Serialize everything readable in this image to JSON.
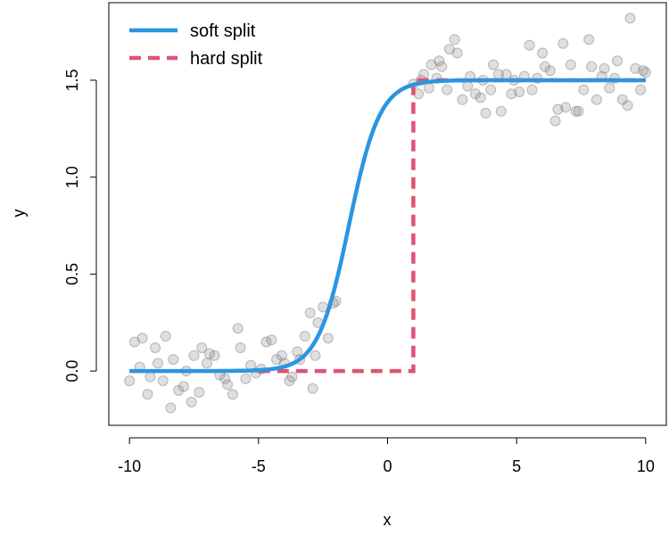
{
  "chart_data": {
    "type": "scatter",
    "title": "",
    "xlabel": "x",
    "ylabel": "y",
    "xlim": [
      -10.8,
      10.8
    ],
    "ylim": [
      -0.28,
      1.9
    ],
    "x_ticks": [
      -10,
      -5,
      0,
      5,
      10
    ],
    "x_tick_labels": [
      "-10",
      "-5",
      "0",
      "5",
      "10"
    ],
    "y_ticks": [
      0.0,
      0.5,
      1.0,
      1.5
    ],
    "y_tick_labels": [
      "0.0",
      "0.5",
      "1.0",
      "1.5"
    ],
    "legend_position": "top-left",
    "colors": {
      "soft": "#2b95e0",
      "hard": "#de5473",
      "points": "#808080"
    },
    "series": [
      {
        "name": "soft split",
        "kind": "logistic curve",
        "low": 0,
        "high": 1.5,
        "center": -1.5,
        "scale": 0.6,
        "x_range": [
          -10,
          10
        ]
      },
      {
        "name": "hard split",
        "kind": "step",
        "low": 0,
        "high": 1.5,
        "x_range": [
          -5,
          10
        ],
        "split_at": 1
      }
    ],
    "points": [
      [
        -10,
        -0.05
      ],
      [
        -9.8,
        0.15
      ],
      [
        -9.6,
        0.02
      ],
      [
        -9.5,
        0.17
      ],
      [
        -9.3,
        -0.12
      ],
      [
        -9.2,
        -0.03
      ],
      [
        -9.0,
        0.12
      ],
      [
        -8.9,
        0.04
      ],
      [
        -8.7,
        -0.05
      ],
      [
        -8.6,
        0.18
      ],
      [
        -8.4,
        -0.19
      ],
      [
        -8.3,
        0.06
      ],
      [
        -8.1,
        -0.1
      ],
      [
        -7.9,
        -0.08
      ],
      [
        -7.8,
        0.0
      ],
      [
        -7.6,
        -0.16
      ],
      [
        -7.5,
        0.08
      ],
      [
        -7.3,
        -0.11
      ],
      [
        -7.2,
        0.12
      ],
      [
        -7.0,
        0.04
      ],
      [
        -6.9,
        0.09
      ],
      [
        -6.7,
        0.08
      ],
      [
        -6.5,
        -0.02
      ],
      [
        -6.3,
        -0.04
      ],
      [
        -6.2,
        -0.07
      ],
      [
        -6.0,
        -0.12
      ],
      [
        -5.8,
        0.22
      ],
      [
        -5.7,
        0.12
      ],
      [
        -5.5,
        -0.04
      ],
      [
        -5.3,
        0.03
      ],
      [
        -5.1,
        -0.01
      ],
      [
        -4.9,
        0.01
      ],
      [
        -4.7,
        0.15
      ],
      [
        -4.5,
        0.16
      ],
      [
        -4.3,
        0.06
      ],
      [
        -4.1,
        0.08
      ],
      [
        -4.0,
        0.04
      ],
      [
        -3.8,
        -0.05
      ],
      [
        -3.7,
        -0.03
      ],
      [
        -3.5,
        0.1
      ],
      [
        -3.4,
        0.06
      ],
      [
        -3.2,
        0.18
      ],
      [
        -3.0,
        0.3
      ],
      [
        -2.9,
        -0.09
      ],
      [
        -2.8,
        0.08
      ],
      [
        -2.7,
        0.25
      ],
      [
        -2.5,
        0.33
      ],
      [
        -2.3,
        0.17
      ],
      [
        -2.1,
        0.35
      ],
      [
        -2.0,
        0.36
      ],
      [
        1.0,
        1.48
      ],
      [
        1.2,
        1.43
      ],
      [
        1.3,
        1.5
      ],
      [
        1.4,
        1.53
      ],
      [
        1.6,
        1.46
      ],
      [
        1.7,
        1.58
      ],
      [
        1.9,
        1.51
      ],
      [
        2.0,
        1.6
      ],
      [
        2.1,
        1.57
      ],
      [
        2.3,
        1.45
      ],
      [
        2.4,
        1.66
      ],
      [
        2.6,
        1.71
      ],
      [
        2.7,
        1.64
      ],
      [
        2.9,
        1.4
      ],
      [
        3.1,
        1.47
      ],
      [
        3.2,
        1.52
      ],
      [
        3.4,
        1.43
      ],
      [
        3.6,
        1.41
      ],
      [
        3.7,
        1.5
      ],
      [
        3.8,
        1.33
      ],
      [
        4.0,
        1.45
      ],
      [
        4.1,
        1.58
      ],
      [
        4.3,
        1.53
      ],
      [
        4.4,
        1.34
      ],
      [
        4.6,
        1.53
      ],
      [
        4.8,
        1.43
      ],
      [
        4.9,
        1.5
      ],
      [
        5.1,
        1.44
      ],
      [
        5.3,
        1.52
      ],
      [
        5.5,
        1.68
      ],
      [
        5.6,
        1.45
      ],
      [
        5.8,
        1.51
      ],
      [
        6.0,
        1.64
      ],
      [
        6.1,
        1.57
      ],
      [
        6.3,
        1.55
      ],
      [
        6.5,
        1.29
      ],
      [
        6.6,
        1.35
      ],
      [
        6.8,
        1.69
      ],
      [
        6.9,
        1.36
      ],
      [
        7.1,
        1.58
      ],
      [
        7.3,
        1.34
      ],
      [
        7.4,
        1.34
      ],
      [
        7.6,
        1.45
      ],
      [
        7.8,
        1.71
      ],
      [
        7.9,
        1.57
      ],
      [
        8.1,
        1.4
      ],
      [
        8.3,
        1.52
      ],
      [
        8.4,
        1.56
      ],
      [
        8.6,
        1.46
      ],
      [
        8.8,
        1.51
      ],
      [
        8.9,
        1.6
      ],
      [
        9.1,
        1.4
      ],
      [
        9.3,
        1.37
      ],
      [
        9.4,
        1.82
      ],
      [
        9.6,
        1.56
      ],
      [
        9.8,
        1.45
      ],
      [
        9.9,
        1.55
      ],
      [
        10.0,
        1.54
      ]
    ]
  }
}
